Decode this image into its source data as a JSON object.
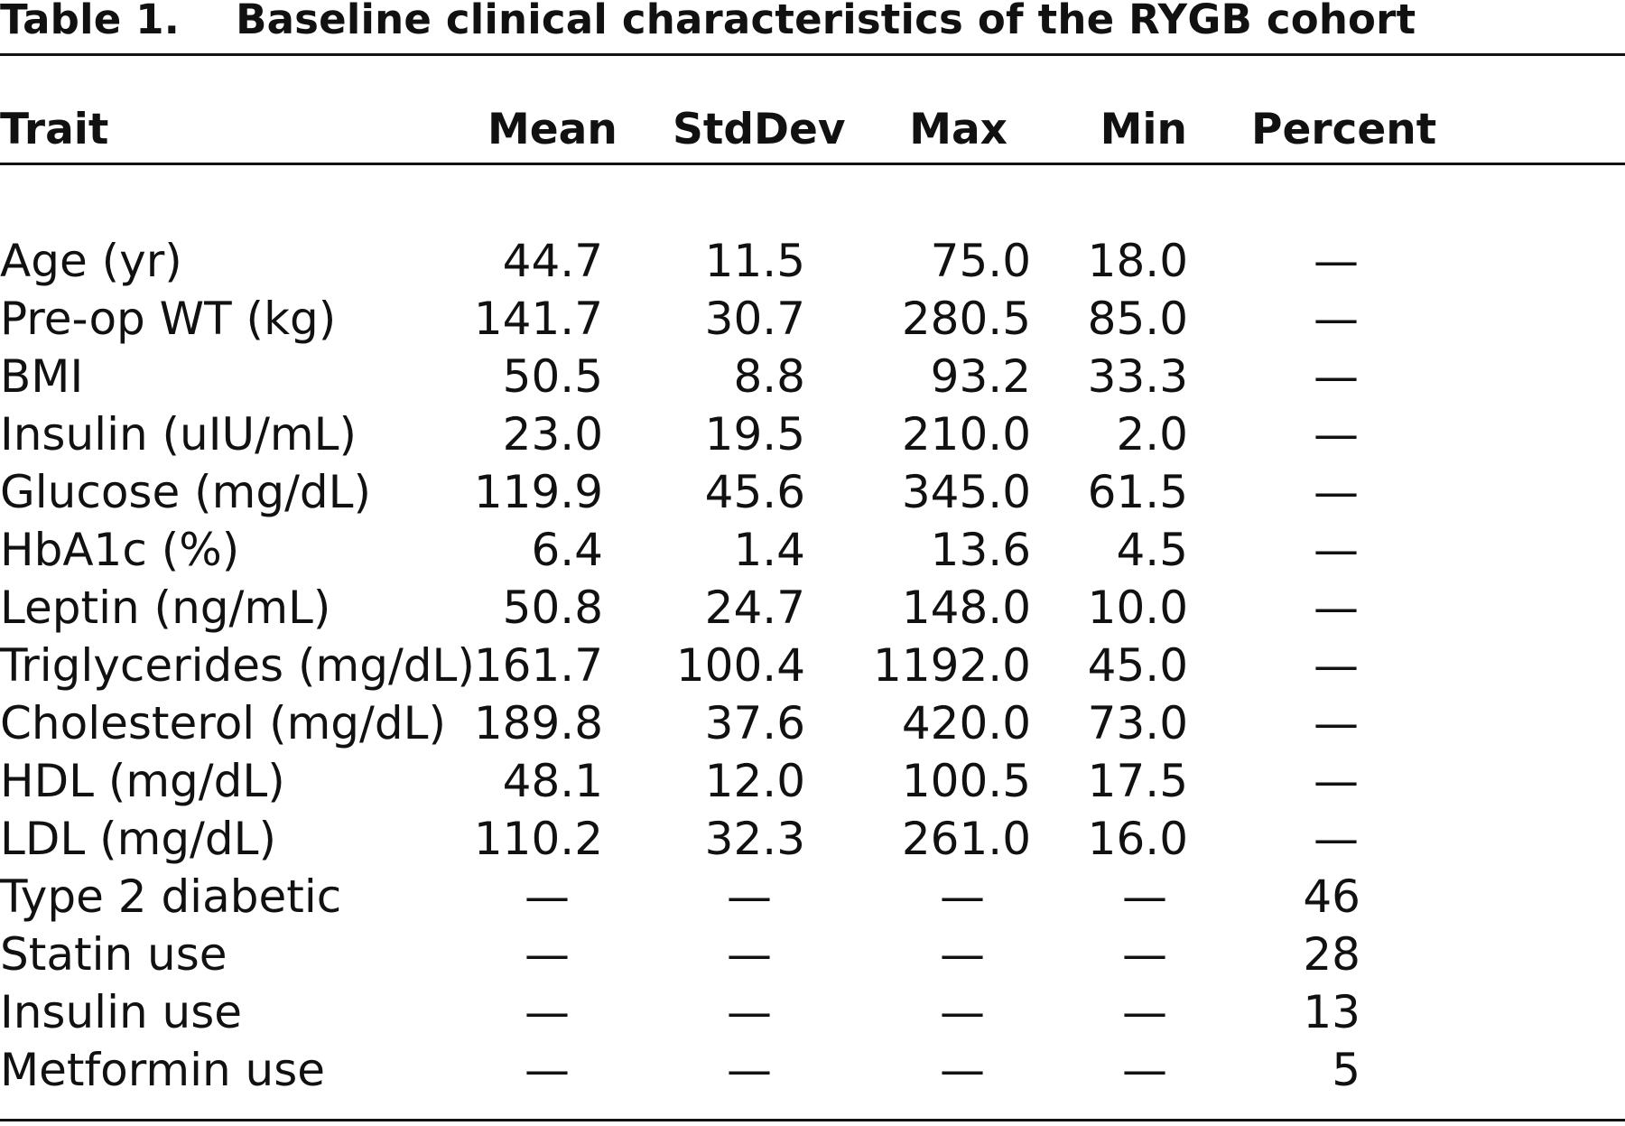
{
  "caption": {
    "label": "Table 1.",
    "title": "Baseline clinical characteristics of the RYGB cohort"
  },
  "columns": [
    "Trait",
    "Mean",
    "StdDev",
    "Max",
    "Min",
    "Percent"
  ],
  "rows": [
    {
      "trait": "Age (yr)",
      "values": [
        "44.7",
        "11.5",
        "75.0",
        "18.0",
        "—"
      ]
    },
    {
      "trait": "Pre-op WT (kg)",
      "values": [
        "141.7",
        "30.7",
        "280.5",
        "85.0",
        "—"
      ]
    },
    {
      "trait": "BMI",
      "values": [
        "50.5",
        "8.8",
        "93.2",
        "33.3",
        "—"
      ]
    },
    {
      "trait": "Insulin (uIU/mL)",
      "values": [
        "23.0",
        "19.5",
        "210.0",
        "2.0",
        "—"
      ]
    },
    {
      "trait": "Glucose (mg/dL)",
      "values": [
        "119.9",
        "45.6",
        "345.0",
        "61.5",
        "—"
      ]
    },
    {
      "trait": "HbA1c (%)",
      "values": [
        "6.4",
        "1.4",
        "13.6",
        "4.5",
        "—"
      ]
    },
    {
      "trait": "Leptin (ng/mL)",
      "values": [
        "50.8",
        "24.7",
        "148.0",
        "10.0",
        "—"
      ]
    },
    {
      "trait": "Triglycerides (mg/dL)",
      "values": [
        "161.7",
        "100.4",
        "1192.0",
        "45.0",
        "—"
      ]
    },
    {
      "trait": "Cholesterol (mg/dL)",
      "values": [
        "189.8",
        "37.6",
        "420.0",
        "73.0",
        "—"
      ]
    },
    {
      "trait": "HDL (mg/dL)",
      "values": [
        "48.1",
        "12.0",
        "100.5",
        "17.5",
        "—"
      ]
    },
    {
      "trait": "LDL (mg/dL)",
      "values": [
        "110.2",
        "32.3",
        "261.0",
        "16.0",
        "—"
      ]
    },
    {
      "trait": "Type 2 diabetic",
      "values": [
        "—",
        "—",
        "—",
        "—",
        "46"
      ]
    },
    {
      "trait": "Statin use",
      "values": [
        "—",
        "—",
        "—",
        "—",
        "28"
      ]
    },
    {
      "trait": "Insulin use",
      "values": [
        "—",
        "—",
        "—",
        "—",
        "13"
      ]
    },
    {
      "trait": "Metformin use",
      "values": [
        "—",
        "—",
        "—",
        "—",
        "5"
      ]
    }
  ]
}
